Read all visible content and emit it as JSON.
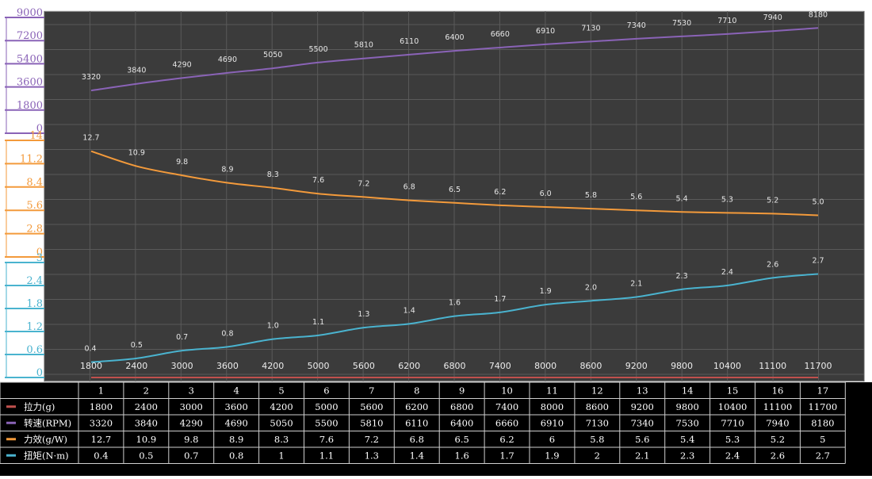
{
  "chart_data": {
    "type": "line",
    "x": [
      1800,
      2400,
      3000,
      3600,
      4200,
      5000,
      5600,
      6200,
      6800,
      7400,
      8000,
      8600,
      9200,
      9800,
      10400,
      11100,
      11700
    ],
    "x_tick_labels": [
      "1800",
      "2400",
      "3000",
      "3600",
      "4200",
      "5000",
      "5600",
      "6200",
      "6800",
      "7400",
      "8000",
      "8600",
      "9200",
      "9800",
      "10400",
      "11100",
      "11700"
    ],
    "series": [
      {
        "name": "转速(RPM)",
        "color": "#8a63b7",
        "values": [
          3320,
          3840,
          4290,
          4690,
          5050,
          5500,
          5810,
          6110,
          6400,
          6660,
          6910,
          7130,
          7340,
          7530,
          7710,
          7940,
          8180
        ],
        "labels": [
          "3320",
          "3840",
          "4290",
          "4690",
          "5050",
          "5500",
          "5810",
          "6110",
          "6400",
          "6660",
          "6910",
          "7130",
          "7340",
          "7530",
          "7710",
          "7940",
          "8180"
        ],
        "ylim": [
          0,
          9000
        ],
        "axis_ticks": [
          "0",
          "1800",
          "3600",
          "5400",
          "7200",
          "9000"
        ]
      },
      {
        "name": "力效(g/W)",
        "color": "#f39a3b",
        "values": [
          12.7,
          10.9,
          9.8,
          8.9,
          8.3,
          7.6,
          7.2,
          6.8,
          6.5,
          6.2,
          6.0,
          5.8,
          5.6,
          5.4,
          5.3,
          5.2,
          5.0
        ],
        "labels": [
          "12.7",
          "10.9",
          "9.8",
          "8.9",
          "8.3",
          "7.6",
          "7.2",
          "6.8",
          "6.5",
          "6.2",
          "6.0",
          "5.8",
          "5.6",
          "5.4",
          "5.3",
          "5.2",
          "5.0"
        ],
        "ylim": [
          0,
          14
        ],
        "axis_ticks": [
          "0",
          "2.8",
          "5.6",
          "8.4",
          "11.2",
          "14"
        ]
      },
      {
        "name": "扭矩(N·m)",
        "color": "#4ab3cf",
        "values": [
          0.4,
          0.5,
          0.7,
          0.8,
          1.0,
          1.1,
          1.3,
          1.4,
          1.6,
          1.7,
          1.9,
          2.0,
          2.1,
          2.3,
          2.4,
          2.6,
          2.7
        ],
        "labels": [
          "0.4",
          "0.5",
          "0.7",
          "0.8",
          "1.0",
          "1.1",
          "1.3",
          "1.4",
          "1.6",
          "1.7",
          "1.9",
          "2.0",
          "2.1",
          "2.3",
          "2.4",
          "2.6",
          "2.7"
        ],
        "ylim": [
          0,
          3
        ],
        "axis_ticks": [
          "0",
          "0.6",
          "1.2",
          "1.8",
          "2.4",
          "3"
        ]
      }
    ],
    "grid": true,
    "background": "#3b3b3b",
    "table": {
      "header": [
        "1",
        "2",
        "3",
        "4",
        "5",
        "6",
        "7",
        "8",
        "9",
        "10",
        "11",
        "12",
        "13",
        "14",
        "15",
        "16",
        "17"
      ],
      "rows": [
        {
          "label": "拉力(g)",
          "color": "#c0504d",
          "values": [
            "1800",
            "2400",
            "3000",
            "3600",
            "4200",
            "5000",
            "5600",
            "6200",
            "6800",
            "7400",
            "8000",
            "8600",
            "9200",
            "9800",
            "10400",
            "11100",
            "11700"
          ]
        },
        {
          "label": "转速(RPM)",
          "color": "#8a63b7",
          "values": [
            "3320",
            "3840",
            "4290",
            "4690",
            "5050",
            "5500",
            "5810",
            "6110",
            "6400",
            "6660",
            "6910",
            "7130",
            "7340",
            "7530",
            "7710",
            "7940",
            "8180"
          ]
        },
        {
          "label": "力效(g/W)",
          "color": "#f39a3b",
          "values": [
            "12.7",
            "10.9",
            "9.8",
            "8.9",
            "8.3",
            "7.6",
            "7.2",
            "6.8",
            "6.5",
            "6.2",
            "6",
            "5.8",
            "5.6",
            "5.4",
            "5.3",
            "5.2",
            "5"
          ]
        },
        {
          "label": "扭矩(N·m)",
          "color": "#4ab3cf",
          "values": [
            "0.4",
            "0.5",
            "0.7",
            "0.8",
            "1",
            "1.1",
            "1.3",
            "1.4",
            "1.6",
            "1.7",
            "1.9",
            "2",
            "2.1",
            "2.3",
            "2.4",
            "2.6",
            "2.7"
          ]
        }
      ]
    }
  }
}
